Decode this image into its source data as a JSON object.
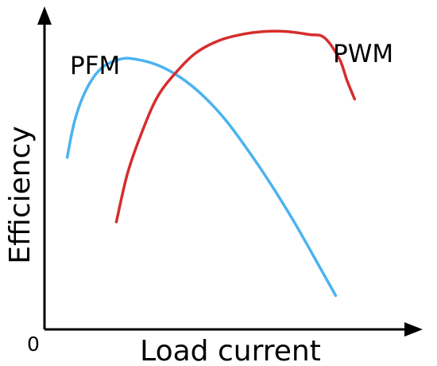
{
  "chart_data": {
    "type": "line",
    "title": "",
    "xlabel": "Load current",
    "ylabel": "Efficiency",
    "origin_label": "0",
    "xlim": [
      0,
      1
    ],
    "ylim": [
      0,
      1
    ],
    "grid": false,
    "legend": "none",
    "series": [
      {
        "name": "PFM",
        "color": "#4ab3f0",
        "x": [
          0.06,
          0.08,
          0.11,
          0.15,
          0.2,
          0.24,
          0.3,
          0.36,
          0.42,
          0.48,
          0.54,
          0.6,
          0.66,
          0.72,
          0.77
        ],
        "y": [
          0.56,
          0.68,
          0.78,
          0.85,
          0.88,
          0.88,
          0.86,
          0.82,
          0.76,
          0.68,
          0.58,
          0.47,
          0.35,
          0.22,
          0.11
        ]
      },
      {
        "name": "PWM",
        "color": "#d62d2d",
        "x": [
          0.19,
          0.22,
          0.26,
          0.3,
          0.35,
          0.4,
          0.46,
          0.52,
          0.58,
          0.64,
          0.7,
          0.74,
          0.78,
          0.8,
          0.82
        ],
        "y": [
          0.35,
          0.51,
          0.65,
          0.76,
          0.84,
          0.9,
          0.94,
          0.96,
          0.97,
          0.97,
          0.96,
          0.95,
          0.88,
          0.81,
          0.75
        ]
      }
    ]
  }
}
